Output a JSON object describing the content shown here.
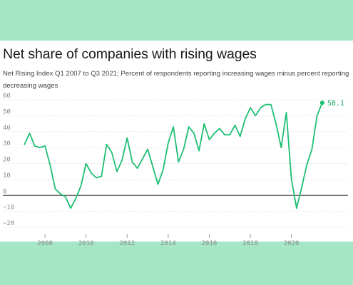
{
  "chart_data": {
    "type": "line",
    "title": "Net share of companies with rising wages",
    "subtitle": "Net Rising Index Q1 2007 to Q3 2021; Percent of respondents reporting increasing wages minus percent reporting decreasing wages",
    "xlabel": "",
    "ylabel": "",
    "xlim": [
      2006.85,
      2022.2
    ],
    "ylim": [
      -20,
      60
    ],
    "y_ticks": [
      -20,
      -10,
      0,
      10,
      20,
      30,
      40,
      50,
      60
    ],
    "x_ticks": [
      2008,
      2010,
      2012,
      2014,
      2016,
      2018,
      2020
    ],
    "grid": true,
    "line_color": "#1dbf73",
    "zero_line_color": "#555555",
    "end_label": "58.1",
    "series": [
      {
        "x": [
          2007.0,
          2007.25,
          2007.5,
          2007.75,
          2008.0,
          2008.25,
          2008.5,
          2008.75,
          2009.0,
          2009.25,
          2009.5,
          2009.75,
          2010.0,
          2010.25,
          2010.5,
          2010.75,
          2011.0,
          2011.25,
          2011.5,
          2011.75,
          2012.0,
          2012.25,
          2012.5,
          2012.75,
          2013.0,
          2013.25,
          2013.5,
          2013.75,
          2014.0,
          2014.25,
          2014.5,
          2014.75,
          2015.0,
          2015.25,
          2015.5,
          2015.75,
          2016.0,
          2016.25,
          2016.5,
          2016.75,
          2017.0,
          2017.25,
          2017.5,
          2017.75,
          2018.0,
          2018.25,
          2018.5,
          2018.75,
          2019.0,
          2019.25,
          2019.5,
          2019.75,
          2020.0,
          2020.25,
          2020.5,
          2020.75,
          2021.0,
          2021.25,
          2021.5
        ],
        "y": [
          32,
          39,
          31,
          30,
          31,
          19,
          4,
          1,
          -1,
          -8,
          -2,
          6,
          20,
          14,
          11,
          12,
          32,
          27,
          15,
          22,
          36,
          21,
          17,
          23,
          29,
          18,
          7,
          16,
          33,
          43,
          21,
          29,
          43,
          39,
          28,
          45,
          35,
          39,
          42,
          38,
          38,
          44,
          37,
          48,
          55,
          50,
          55,
          57,
          57,
          45,
          30,
          52,
          10,
          -8,
          5,
          19,
          29,
          50,
          58.1
        ]
      }
    ]
  }
}
